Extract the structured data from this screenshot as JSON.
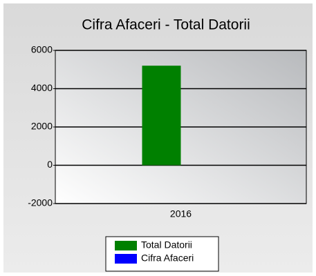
{
  "chart_data": {
    "type": "bar",
    "title": "Cifra Afaceri - Total  Datorii",
    "categories": [
      "2016"
    ],
    "series": [
      {
        "name": "Total Datorii",
        "color": "#008000",
        "values": [
          5200
        ]
      },
      {
        "name": "Cifra Afaceri",
        "color": "#0000ff",
        "values": [
          0
        ]
      }
    ],
    "ylim": [
      -2000,
      6000
    ],
    "yticks": [
      -2000,
      0,
      2000,
      4000,
      6000
    ],
    "grid": true
  }
}
